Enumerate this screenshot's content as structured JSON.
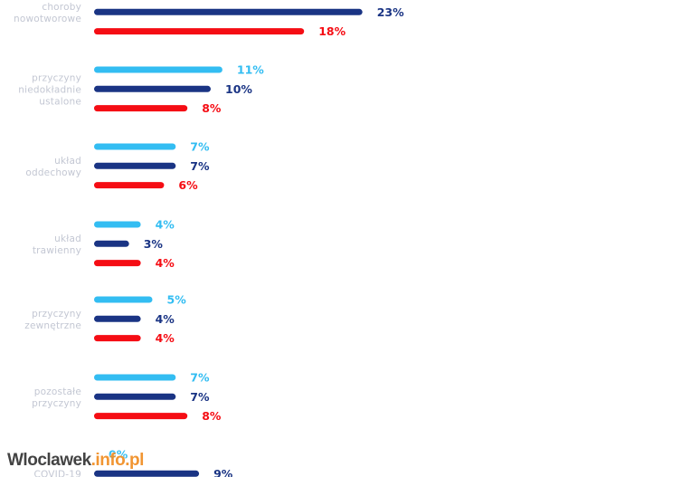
{
  "chart_data": {
    "type": "bar",
    "orientation": "horizontal",
    "grid": false,
    "xlim": [
      0,
      23
    ],
    "colors": [
      "#33bdf2",
      "#1a3484",
      "#f50d14"
    ],
    "groups": [
      {
        "label_lines": [
          "choroby",
          "nowotworowe"
        ],
        "bars": [
          {
            "series": 1,
            "value": 23,
            "label": "23%"
          },
          {
            "series": 2,
            "value": 18,
            "label": "18%"
          }
        ]
      },
      {
        "label_lines": [
          "przyczyny",
          "niedokładnie",
          "ustalone"
        ],
        "bars": [
          {
            "series": 0,
            "value": 11,
            "label": "11%"
          },
          {
            "series": 1,
            "value": 10,
            "label": "10%"
          },
          {
            "series": 2,
            "value": 8,
            "label": "8%"
          }
        ]
      },
      {
        "label_lines": [
          "układ",
          "oddechowy"
        ],
        "bars": [
          {
            "series": 0,
            "value": 7,
            "label": "7%"
          },
          {
            "series": 1,
            "value": 7,
            "label": "7%"
          },
          {
            "series": 2,
            "value": 6,
            "label": "6%"
          }
        ]
      },
      {
        "label_lines": [
          "układ",
          "trawienny"
        ],
        "bars": [
          {
            "series": 0,
            "value": 4,
            "label": "4%"
          },
          {
            "series": 1,
            "value": 3,
            "label": "3%"
          },
          {
            "series": 2,
            "value": 4,
            "label": "4%"
          }
        ]
      },
      {
        "label_lines": [
          "przyczyny",
          "zewnętrzne"
        ],
        "bars": [
          {
            "series": 0,
            "value": 5,
            "label": "5%"
          },
          {
            "series": 1,
            "value": 4,
            "label": "4%"
          },
          {
            "series": 2,
            "value": 4,
            "label": "4%"
          }
        ]
      },
      {
        "label_lines": [
          "pozostałe",
          "przyczyny"
        ],
        "bars": [
          {
            "series": 0,
            "value": 7,
            "label": "7%"
          },
          {
            "series": 1,
            "value": 7,
            "label": "7%"
          },
          {
            "series": 2,
            "value": 8,
            "label": "8%"
          }
        ]
      },
      {
        "label_lines": [
          "COVID-19"
        ],
        "bars": [
          {
            "series": 0,
            "value": 0,
            "label": "0%"
          },
          {
            "series": 1,
            "value": 9,
            "label": "9%"
          }
        ]
      }
    ]
  },
  "watermark": {
    "part1": "Wloclawek",
    "part2": ".info.pl"
  }
}
